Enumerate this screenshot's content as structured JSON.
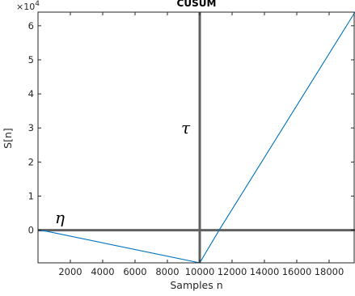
{
  "chart_data": {
    "type": "line",
    "title": "CUSUM",
    "xlabel": "Samples n",
    "ylabel": "S[n]",
    "xlim": [
      0,
      19600
    ],
    "ylim": [
      -9600,
      64000
    ],
    "y_exponent_label": "×10",
    "y_exponent_power": "4",
    "x_ticks": [
      2000,
      4000,
      6000,
      8000,
      10000,
      12000,
      14000,
      16000,
      18000
    ],
    "x_tick_labels": [
      "2000",
      "4000",
      "6000",
      "8000",
      "10000",
      "12000",
      "14000",
      "16000",
      "18000"
    ],
    "y_ticks": [
      0,
      10000,
      20000,
      30000,
      40000,
      50000,
      60000
    ],
    "y_tick_labels": [
      "0",
      "1",
      "2",
      "3",
      "4",
      "5",
      "6"
    ],
    "series": [
      {
        "color": "#0072bd",
        "x": [
          0,
          500,
          10000,
          11200,
          19600
        ],
        "y": [
          0,
          -300,
          -9600,
          0,
          64000
        ]
      }
    ],
    "reference_lines": [
      {
        "orientation": "horizontal",
        "value": 0,
        "label": "η",
        "color": "#606060"
      },
      {
        "orientation": "vertical",
        "value": 10000,
        "label": "τ",
        "color": "#606060"
      }
    ],
    "grid": false,
    "legend": "none"
  }
}
